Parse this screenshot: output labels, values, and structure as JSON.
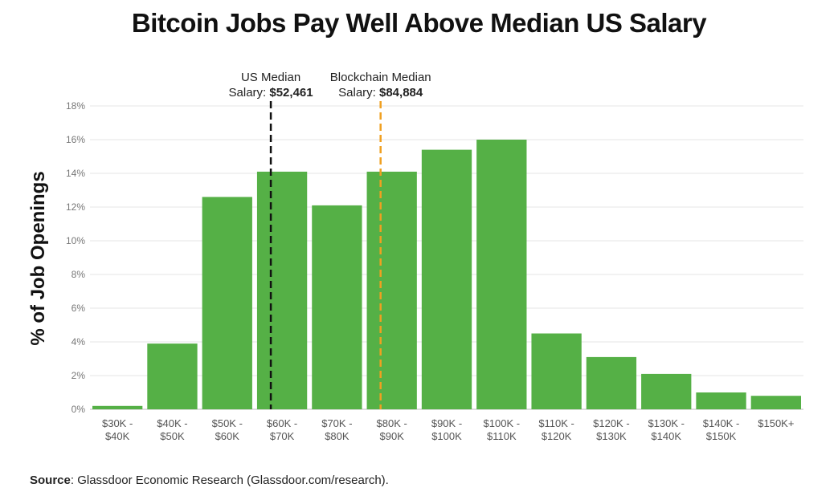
{
  "title": "Bitcoin Jobs Pay Well Above Median US Salary",
  "source": {
    "label": "Source",
    "text": ": Glassdoor Economic Research (Glassdoor.com/research)."
  },
  "colors": {
    "bar": "#55b046",
    "us_median_line": "#111111",
    "blockchain_median_line": "#f0a020",
    "grid": "#e4e4e4"
  },
  "chart_data": {
    "type": "bar",
    "title": "Bitcoin Jobs Pay Well Above Median US Salary",
    "xlabel": "",
    "ylabel": "% of Job Openings",
    "ylim": [
      0,
      18
    ],
    "yticks": [
      0,
      2,
      4,
      6,
      8,
      10,
      12,
      14,
      16,
      18
    ],
    "ytick_labels": [
      "0%",
      "2%",
      "4%",
      "6%",
      "8%",
      "10%",
      "12%",
      "14%",
      "16%",
      "18%"
    ],
    "grid": true,
    "categories": [
      [
        "$30K -",
        "$40K"
      ],
      [
        "$40K -",
        "$50K"
      ],
      [
        "$50K -",
        "$60K"
      ],
      [
        "$60K -",
        "$70K"
      ],
      [
        "$70K -",
        "$80K"
      ],
      [
        "$80K -",
        "$90K"
      ],
      [
        "$90K -",
        "$100K"
      ],
      [
        "$100K -",
        "$110K"
      ],
      [
        "$110K -",
        "$120K"
      ],
      [
        "$120K -",
        "$130K"
      ],
      [
        "$130K -",
        "$140K"
      ],
      [
        "$140K -",
        "$150K"
      ],
      [
        "$150K+"
      ]
    ],
    "values": [
      0.2,
      3.9,
      12.6,
      14.1,
      12.1,
      14.1,
      15.4,
      16.0,
      4.5,
      3.1,
      2.1,
      1.0,
      0.8
    ],
    "annotations": [
      {
        "line1": "US Median",
        "line2_prefix": "Salary: ",
        "line2_value": "$52,461",
        "category_index": 3,
        "style": "dashed",
        "color": "#111111"
      },
      {
        "line1": "Blockchain Median",
        "line2_prefix": "Salary: ",
        "line2_value": "$84,884",
        "category_index": 5,
        "style": "dashed",
        "color": "#f0a020"
      }
    ]
  }
}
